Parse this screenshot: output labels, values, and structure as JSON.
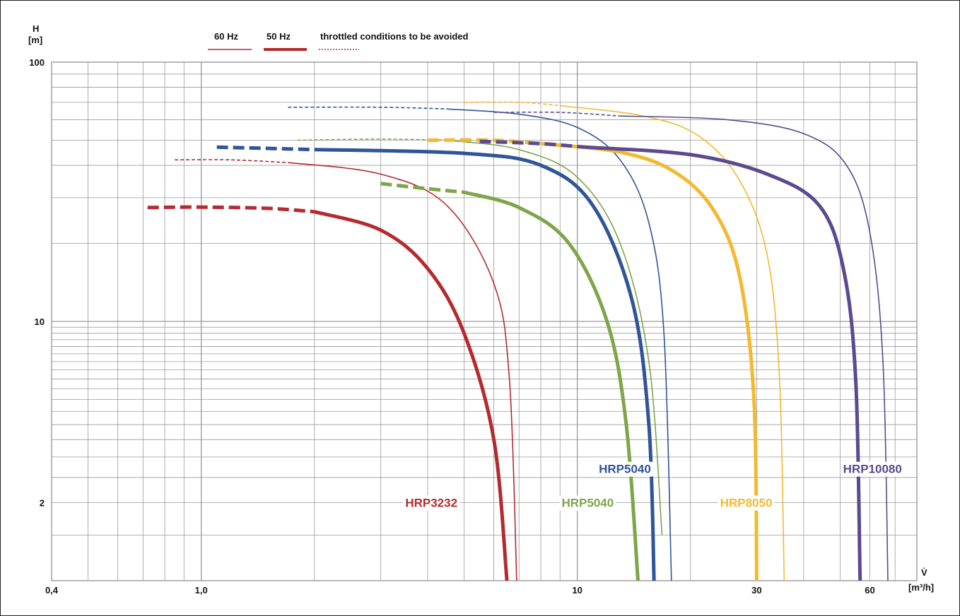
{
  "chart_data": {
    "type": "line",
    "x_scale": "log",
    "y_scale": "log",
    "xlim": [
      0.4,
      80
    ],
    "ylim": [
      1,
      100
    ],
    "grid": true,
    "y_axis_label_1": "H",
    "y_axis_label_2": "[m]",
    "x_axis_symbol": "V̇",
    "x_axis_unit": "[m³/h]",
    "x_ticks": [
      {
        "value": 0.4,
        "label": "0,4"
      },
      {
        "value": 1,
        "label": "1,0"
      },
      {
        "value": 10,
        "label": "10"
      },
      {
        "value": 30,
        "label": "30"
      },
      {
        "value": 60,
        "label": "60"
      }
    ],
    "y_ticks": [
      {
        "value": 100,
        "label": "100"
      },
      {
        "value": 10,
        "label": "10"
      },
      {
        "value": 2,
        "label": "2"
      }
    ],
    "legend": {
      "placement": "top",
      "items": [
        {
          "label": "60 Hz",
          "style": "thin"
        },
        {
          "label": "50 Hz",
          "style": "thick"
        },
        {
          "label": "throttled conditions to be avoided",
          "style": "dotted"
        }
      ]
    },
    "colors": {
      "red": "#b52a2f",
      "green": "#7ea54a",
      "blue": "#2f5597",
      "yellow": "#f3b92f",
      "purple": "#5a4a8f"
    },
    "series": [
      {
        "name": "HRP3232",
        "freq": "50 Hz",
        "color": "red",
        "throttled": [
          [
            0.72,
            27.5
          ],
          [
            1.0,
            27.6
          ],
          [
            1.5,
            27.3
          ],
          [
            2.0,
            26.5
          ]
        ],
        "points": [
          [
            2.0,
            26.5
          ],
          [
            3.0,
            22.5
          ],
          [
            4.0,
            16.0
          ],
          [
            5.0,
            9.0
          ],
          [
            6.0,
            3.5
          ],
          [
            6.5,
            1.0
          ]
        ]
      },
      {
        "name": "HRP3232",
        "freq": "60 Hz",
        "color": "red",
        "throttled": [
          [
            0.85,
            42.0
          ],
          [
            1.2,
            42.0
          ],
          [
            1.7,
            41.0
          ]
        ],
        "points": [
          [
            1.7,
            41.0
          ],
          [
            3.0,
            37.0
          ],
          [
            4.5,
            28.0
          ],
          [
            6.0,
            14.0
          ],
          [
            6.6,
            6.0
          ],
          [
            6.9,
            1.0
          ]
        ]
      },
      {
        "name": "HRP5040",
        "freq": "50 Hz",
        "color": "green",
        "throttled": [
          [
            3.0,
            34.0
          ],
          [
            4.0,
            32.5
          ],
          [
            5.0,
            31.5
          ]
        ],
        "points": [
          [
            5.0,
            31.5
          ],
          [
            7.0,
            27.5
          ],
          [
            9.5,
            20.0
          ],
          [
            12.0,
            10.0
          ],
          [
            13.5,
            4.0
          ],
          [
            14.5,
            1.0
          ]
        ]
      },
      {
        "name": "HRP5040",
        "freq": "60 Hz",
        "color": "green",
        "throttled": [
          [
            1.8,
            50.0
          ],
          [
            3.0,
            50.5
          ],
          [
            4.5,
            50.0
          ]
        ],
        "points": [
          [
            4.5,
            50.0
          ],
          [
            7.0,
            46.0
          ],
          [
            10.0,
            36.0
          ],
          [
            13.0,
            20.0
          ],
          [
            15.5,
            7.0
          ],
          [
            16.8,
            1.5
          ]
        ]
      },
      {
        "name": "HRP5040",
        "freq": "50 Hz",
        "color": "blue",
        "throttled": [
          [
            1.1,
            47.0
          ],
          [
            1.5,
            46.5
          ],
          [
            2.0,
            46.0
          ]
        ],
        "points": [
          [
            2.0,
            46.0
          ],
          [
            5.0,
            44.5
          ],
          [
            8.0,
            40.0
          ],
          [
            11.0,
            28.0
          ],
          [
            14.0,
            12.0
          ],
          [
            15.5,
            4.0
          ],
          [
            16.0,
            1.0
          ]
        ]
      },
      {
        "name": "HRP5040",
        "freq": "60 Hz",
        "color": "blue",
        "throttled": [
          [
            1.7,
            67.0
          ],
          [
            3.0,
            67.0
          ],
          [
            4.5,
            66.0
          ]
        ],
        "points": [
          [
            4.5,
            66.0
          ],
          [
            7.0,
            63.0
          ],
          [
            10.0,
            56.0
          ],
          [
            13.0,
            42.0
          ],
          [
            15.5,
            24.0
          ],
          [
            17.0,
            9.0
          ],
          [
            17.8,
            1.0
          ]
        ]
      },
      {
        "name": "HRP8050",
        "freq": "50 Hz",
        "color": "yellow",
        "throttled": [
          [
            4.0,
            50.0
          ],
          [
            6.0,
            50.0
          ],
          [
            8.0,
            48.5
          ]
        ],
        "points": [
          [
            8.0,
            48.5
          ],
          [
            13.0,
            45.0
          ],
          [
            18.0,
            38.0
          ],
          [
            23.0,
            27.0
          ],
          [
            27.0,
            15.0
          ],
          [
            29.5,
            5.0
          ],
          [
            30.0,
            1.0
          ]
        ]
      },
      {
        "name": "HRP8050",
        "freq": "60 Hz",
        "color": "yellow",
        "throttled": [
          [
            5.0,
            70.0
          ],
          [
            7.0,
            70.0
          ],
          [
            9.0,
            68.0
          ]
        ],
        "points": [
          [
            9.0,
            68.0
          ],
          [
            15.0,
            62.0
          ],
          [
            21.0,
            52.0
          ],
          [
            27.0,
            35.0
          ],
          [
            32.0,
            18.0
          ],
          [
            34.5,
            6.0
          ],
          [
            35.5,
            1.0
          ]
        ]
      },
      {
        "name": "HRP10080",
        "freq": "50 Hz",
        "color": "purple",
        "throttled": [
          [
            5.5,
            49.5
          ],
          [
            8.0,
            48.5
          ],
          [
            10.5,
            47.0
          ]
        ],
        "points": [
          [
            10.5,
            47.0
          ],
          [
            20.0,
            44.0
          ],
          [
            32.0,
            37.0
          ],
          [
            44.0,
            28.0
          ],
          [
            51.0,
            16.0
          ],
          [
            55.0,
            6.0
          ],
          [
            56.5,
            1.0
          ]
        ]
      },
      {
        "name": "HRP10080",
        "freq": "60 Hz",
        "color": "purple",
        "throttled": [
          [
            6.0,
            64.0
          ],
          [
            9.0,
            64.0
          ],
          [
            13.0,
            62.0
          ]
        ],
        "points": [
          [
            13.0,
            62.0
          ],
          [
            25.0,
            60.0
          ],
          [
            40.0,
            53.0
          ],
          [
            52.0,
            40.0
          ],
          [
            60.0,
            22.0
          ],
          [
            65.0,
            7.0
          ],
          [
            67.0,
            1.0
          ]
        ]
      }
    ],
    "curve_labels": [
      {
        "text": "HRP3232",
        "color": "red",
        "at": [
          4.8,
          2.0
        ]
      },
      {
        "text": "HRP5040",
        "color": "green",
        "at": [
          12.5,
          2.0
        ]
      },
      {
        "text": "HRP5040",
        "color": "blue",
        "at": [
          15.7,
          2.7
        ]
      },
      {
        "text": "HRP8050",
        "color": "yellow",
        "at": [
          33.0,
          2.0
        ]
      },
      {
        "text": "HRP10080",
        "color": "purple",
        "at": [
          73.0,
          2.7
        ]
      }
    ]
  }
}
